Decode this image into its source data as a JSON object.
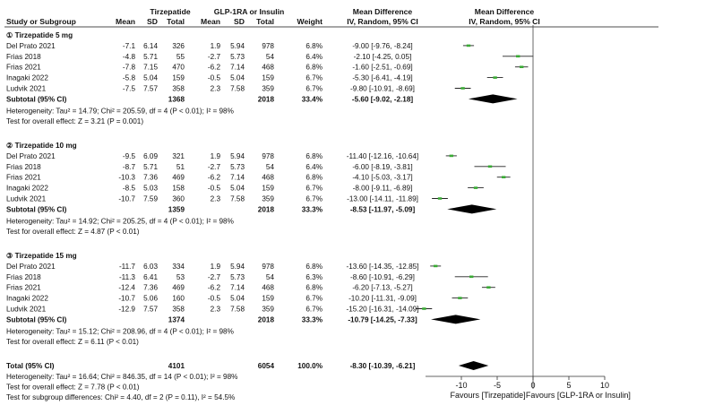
{
  "header": {
    "group1": "Tirzepatide",
    "group2": "GLP-1RA or Insulin",
    "md_title": "Mean Difference",
    "md_sub": "IV, Random, 95% CI",
    "plot_title": "Mean Difference",
    "plot_sub": "IV, Random, 95% CI",
    "cols": [
      "Study or Subgroup",
      "Mean",
      "SD",
      "Total",
      "Mean",
      "SD",
      "Total",
      "Weight"
    ]
  },
  "chart_data": {
    "type": "forest",
    "xlim": [
      -15,
      10
    ],
    "ticks": [
      -10,
      -5,
      0,
      5,
      10
    ],
    "tick_labels": [
      "-10",
      "-5",
      "0",
      "5",
      "10"
    ],
    "favours_left": "Favours [Tirzepatide]",
    "favours_right": "Favours [GLP-1RA or Insulin]",
    "colors": {
      "point": "#3aaa35",
      "line": "#222222",
      "diamond": "#000000"
    },
    "subgroups": [
      {
        "title": "① Tirzepatide 5 mg",
        "studies": [
          {
            "name": "Del Prato 2021",
            "m1": "-7.1",
            "sd1": "6.14",
            "n1": "326",
            "m2": "1.9",
            "sd2": "5.94",
            "n2": "978",
            "weight": "6.8%",
            "ci_text": "-9.00 [-9.76, -8.24]",
            "est": -9.0,
            "lo": -9.76,
            "hi": -8.24
          },
          {
            "name": "Frias 2018",
            "m1": "-4.8",
            "sd1": "5.71",
            "n1": "55",
            "m2": "-2.7",
            "sd2": "5.73",
            "n2": "54",
            "weight": "6.4%",
            "ci_text": "-2.10 [-4.25, 0.05]",
            "est": -2.1,
            "lo": -4.25,
            "hi": 0.05
          },
          {
            "name": "Frias 2021",
            "m1": "-7.8",
            "sd1": "7.15",
            "n1": "470",
            "m2": "-6.2",
            "sd2": "7.14",
            "n2": "468",
            "weight": "6.8%",
            "ci_text": "-1.60 [-2.51, -0.69]",
            "est": -1.6,
            "lo": -2.51,
            "hi": -0.69
          },
          {
            "name": "Inagaki 2022",
            "m1": "-5.8",
            "sd1": "5.04",
            "n1": "159",
            "m2": "-0.5",
            "sd2": "5.04",
            "n2": "159",
            "weight": "6.7%",
            "ci_text": "-5.30 [-6.41, -4.19]",
            "est": -5.3,
            "lo": -6.41,
            "hi": -4.19
          },
          {
            "name": "Ludvik 2021",
            "m1": "-7.5",
            "sd1": "7.57",
            "n1": "358",
            "m2": "2.3",
            "sd2": "7.58",
            "n2": "359",
            "weight": "6.7%",
            "ci_text": "-9.80 [-10.91, -8.69]",
            "est": -9.8,
            "lo": -10.91,
            "hi": -8.69
          }
        ],
        "subtotal": {
          "label": "Subtotal (95% CI)",
          "n1": "1368",
          "n2": "2018",
          "weight": "33.4%",
          "ci_text": "-5.60 [-9.02, -2.18]",
          "est": -5.6,
          "lo": -9.02,
          "hi": -2.18
        },
        "heterogeneity": "Heterogeneity: Tau² = 14.79; Chi² = 205.59, df = 4 (P < 0.01); I² = 98%",
        "overall": "Test for overall effect: Z = 3.21 (P = 0.001)"
      },
      {
        "title": "② Tirzepatide 10 mg",
        "studies": [
          {
            "name": "Del Prato 2021",
            "m1": "-9.5",
            "sd1": "6.09",
            "n1": "321",
            "m2": "1.9",
            "sd2": "5.94",
            "n2": "978",
            "weight": "6.8%",
            "ci_text": "-11.40 [-12.16, -10.64]",
            "est": -11.4,
            "lo": -12.16,
            "hi": -10.64
          },
          {
            "name": "Frias 2018",
            "m1": "-8.7",
            "sd1": "5.71",
            "n1": "51",
            "m2": "-2.7",
            "sd2": "5.73",
            "n2": "54",
            "weight": "6.4%",
            "ci_text": "-6.00 [-8.19, -3.81]",
            "est": -6.0,
            "lo": -8.19,
            "hi": -3.81
          },
          {
            "name": "Frias 2021",
            "m1": "-10.3",
            "sd1": "7.36",
            "n1": "469",
            "m2": "-6.2",
            "sd2": "7.14",
            "n2": "468",
            "weight": "6.8%",
            "ci_text": "-4.10 [-5.03, -3.17]",
            "est": -4.1,
            "lo": -5.03,
            "hi": -3.17
          },
          {
            "name": "Inagaki 2022",
            "m1": "-8.5",
            "sd1": "5.03",
            "n1": "158",
            "m2": "-0.5",
            "sd2": "5.04",
            "n2": "159",
            "weight": "6.7%",
            "ci_text": "-8.00 [-9.11, -6.89]",
            "est": -8.0,
            "lo": -9.11,
            "hi": -6.89
          },
          {
            "name": "Ludvik 2021",
            "m1": "-10.7",
            "sd1": "7.59",
            "n1": "360",
            "m2": "2.3",
            "sd2": "7.58",
            "n2": "359",
            "weight": "6.7%",
            "ci_text": "-13.00 [-14.11, -11.89]",
            "est": -13.0,
            "lo": -14.11,
            "hi": -11.89
          }
        ],
        "subtotal": {
          "label": "Subtotal (95% CI)",
          "n1": "1359",
          "n2": "2018",
          "weight": "33.3%",
          "ci_text": "-8.53 [-11.97, -5.09]",
          "est": -8.53,
          "lo": -11.97,
          "hi": -5.09
        },
        "heterogeneity": "Heterogeneity: Tau² = 14.92; Chi² = 205.25, df = 4 (P < 0.01); I² = 98%",
        "overall": "Test for overall effect: Z = 4.87 (P < 0.01)"
      },
      {
        "title": "③ Tirzepatide 15 mg",
        "studies": [
          {
            "name": "Del Prato 2021",
            "m1": "-11.7",
            "sd1": "6.03",
            "n1": "334",
            "m2": "1.9",
            "sd2": "5.94",
            "n2": "978",
            "weight": "6.8%",
            "ci_text": "-13.60 [-14.35, -12.85]",
            "est": -13.6,
            "lo": -14.35,
            "hi": -12.85
          },
          {
            "name": "Frias 2018",
            "m1": "-11.3",
            "sd1": "6.41",
            "n1": "53",
            "m2": "-2.7",
            "sd2": "5.73",
            "n2": "54",
            "weight": "6.3%",
            "ci_text": "-8.60 [-10.91, -6.29]",
            "est": -8.6,
            "lo": -10.91,
            "hi": -6.29
          },
          {
            "name": "Frias 2021",
            "m1": "-12.4",
            "sd1": "7.36",
            "n1": "469",
            "m2": "-6.2",
            "sd2": "7.14",
            "n2": "468",
            "weight": "6.8%",
            "ci_text": "-6.20 [-7.13, -5.27]",
            "est": -6.2,
            "lo": -7.13,
            "hi": -5.27
          },
          {
            "name": "Inagaki 2022",
            "m1": "-10.7",
            "sd1": "5.06",
            "n1": "160",
            "m2": "-0.5",
            "sd2": "5.04",
            "n2": "159",
            "weight": "6.7%",
            "ci_text": "-10.20 [-11.31, -9.09]",
            "est": -10.2,
            "lo": -11.31,
            "hi": -9.09
          },
          {
            "name": "Ludvik 2021",
            "m1": "-12.9",
            "sd1": "7.57",
            "n1": "358",
            "m2": "2.3",
            "sd2": "7.58",
            "n2": "359",
            "weight": "6.7%",
            "ci_text": "-15.20 [-16.31, -14.09]",
            "est": -15.2,
            "lo": -16.31,
            "hi": -14.09
          }
        ],
        "subtotal": {
          "label": "Subtotal (95% CI)",
          "n1": "1374",
          "n2": "2018",
          "weight": "33.3%",
          "ci_text": "-10.79 [-14.25, -7.33]",
          "est": -10.79,
          "lo": -14.25,
          "hi": -7.33
        },
        "heterogeneity": "Heterogeneity: Tau² = 15.12; Chi² = 208.96, df = 4 (P < 0.01); I² = 98%",
        "overall": "Test for overall effect: Z = 6.11 (P < 0.01)"
      }
    ],
    "total": {
      "label": "Total (95% CI)",
      "n1": "4101",
      "n2": "6054",
      "weight": "100.0%",
      "ci_text": "-8.30 [-10.39, -6.21]",
      "est": -8.3,
      "lo": -10.39,
      "hi": -6.21
    },
    "total_notes": [
      "Heterogeneity: Tau² = 16.64; Chi² = 846.35, df = 14 (P < 0.01); I² = 98%",
      "Test for overall effect: Z = 7.78 (P < 0.01)",
      "Test for subgroup differences: Chi² = 4.40, df = 2 (P = 0.11), I² = 54.5%"
    ]
  }
}
